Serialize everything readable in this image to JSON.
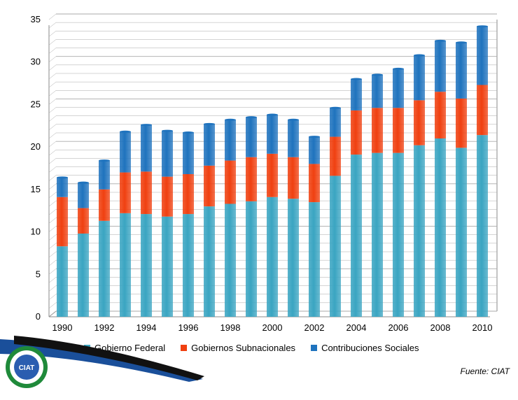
{
  "chart_data": {
    "type": "bar",
    "stacked": true,
    "categories": [
      "1990",
      "1991",
      "1992",
      "1993",
      "1994",
      "1995",
      "1996",
      "1997",
      "1998",
      "1999",
      "2000",
      "2001",
      "2002",
      "2003",
      "2004",
      "2005",
      "2006",
      "2007",
      "2008",
      "2009",
      "2010"
    ],
    "x_tick_labels": [
      "1990",
      "1992",
      "1994",
      "1996",
      "1998",
      "2000",
      "2002",
      "2004",
      "2006",
      "2008",
      "2010"
    ],
    "y_tick_labels": [
      "0",
      "5",
      "10",
      "15",
      "20",
      "25",
      "30",
      "35"
    ],
    "ylim": [
      0,
      35
    ],
    "grid": true,
    "legend_position": "bottom",
    "series": [
      {
        "name": "Gobierno Federal",
        "color": "#3aa5c2",
        "values": [
          8.3,
          9.8,
          11.3,
          12.2,
          12.1,
          11.8,
          12.1,
          13.0,
          13.3,
          13.6,
          14.1,
          13.9,
          13.5,
          16.6,
          19.1,
          19.3,
          19.3,
          20.2,
          21.0,
          19.9,
          21.4
        ]
      },
      {
        "name": "Gobiernos Subnacionales",
        "color": "#f04010",
        "values": [
          5.8,
          3.0,
          3.7,
          4.8,
          5.0,
          4.7,
          4.7,
          4.8,
          5.1,
          5.2,
          5.1,
          4.9,
          4.5,
          4.6,
          5.2,
          5.3,
          5.3,
          5.3,
          5.5,
          5.8,
          5.9
        ]
      },
      {
        "name": "Contribuciones Sociales",
        "color": "#1f73be",
        "values": [
          2.3,
          3.0,
          3.4,
          4.8,
          5.5,
          5.4,
          4.9,
          4.9,
          4.8,
          4.7,
          4.6,
          4.4,
          3.2,
          3.4,
          3.7,
          3.9,
          4.6,
          5.3,
          6.0,
          6.6,
          6.9
        ]
      }
    ]
  },
  "footer": {
    "source": "Fuente: CIAT",
    "logo_text": "CIAT"
  },
  "colors": {
    "gridline": "#aaaaaa",
    "axis": "#888888",
    "blue_sweep": "#1a4f9a"
  }
}
